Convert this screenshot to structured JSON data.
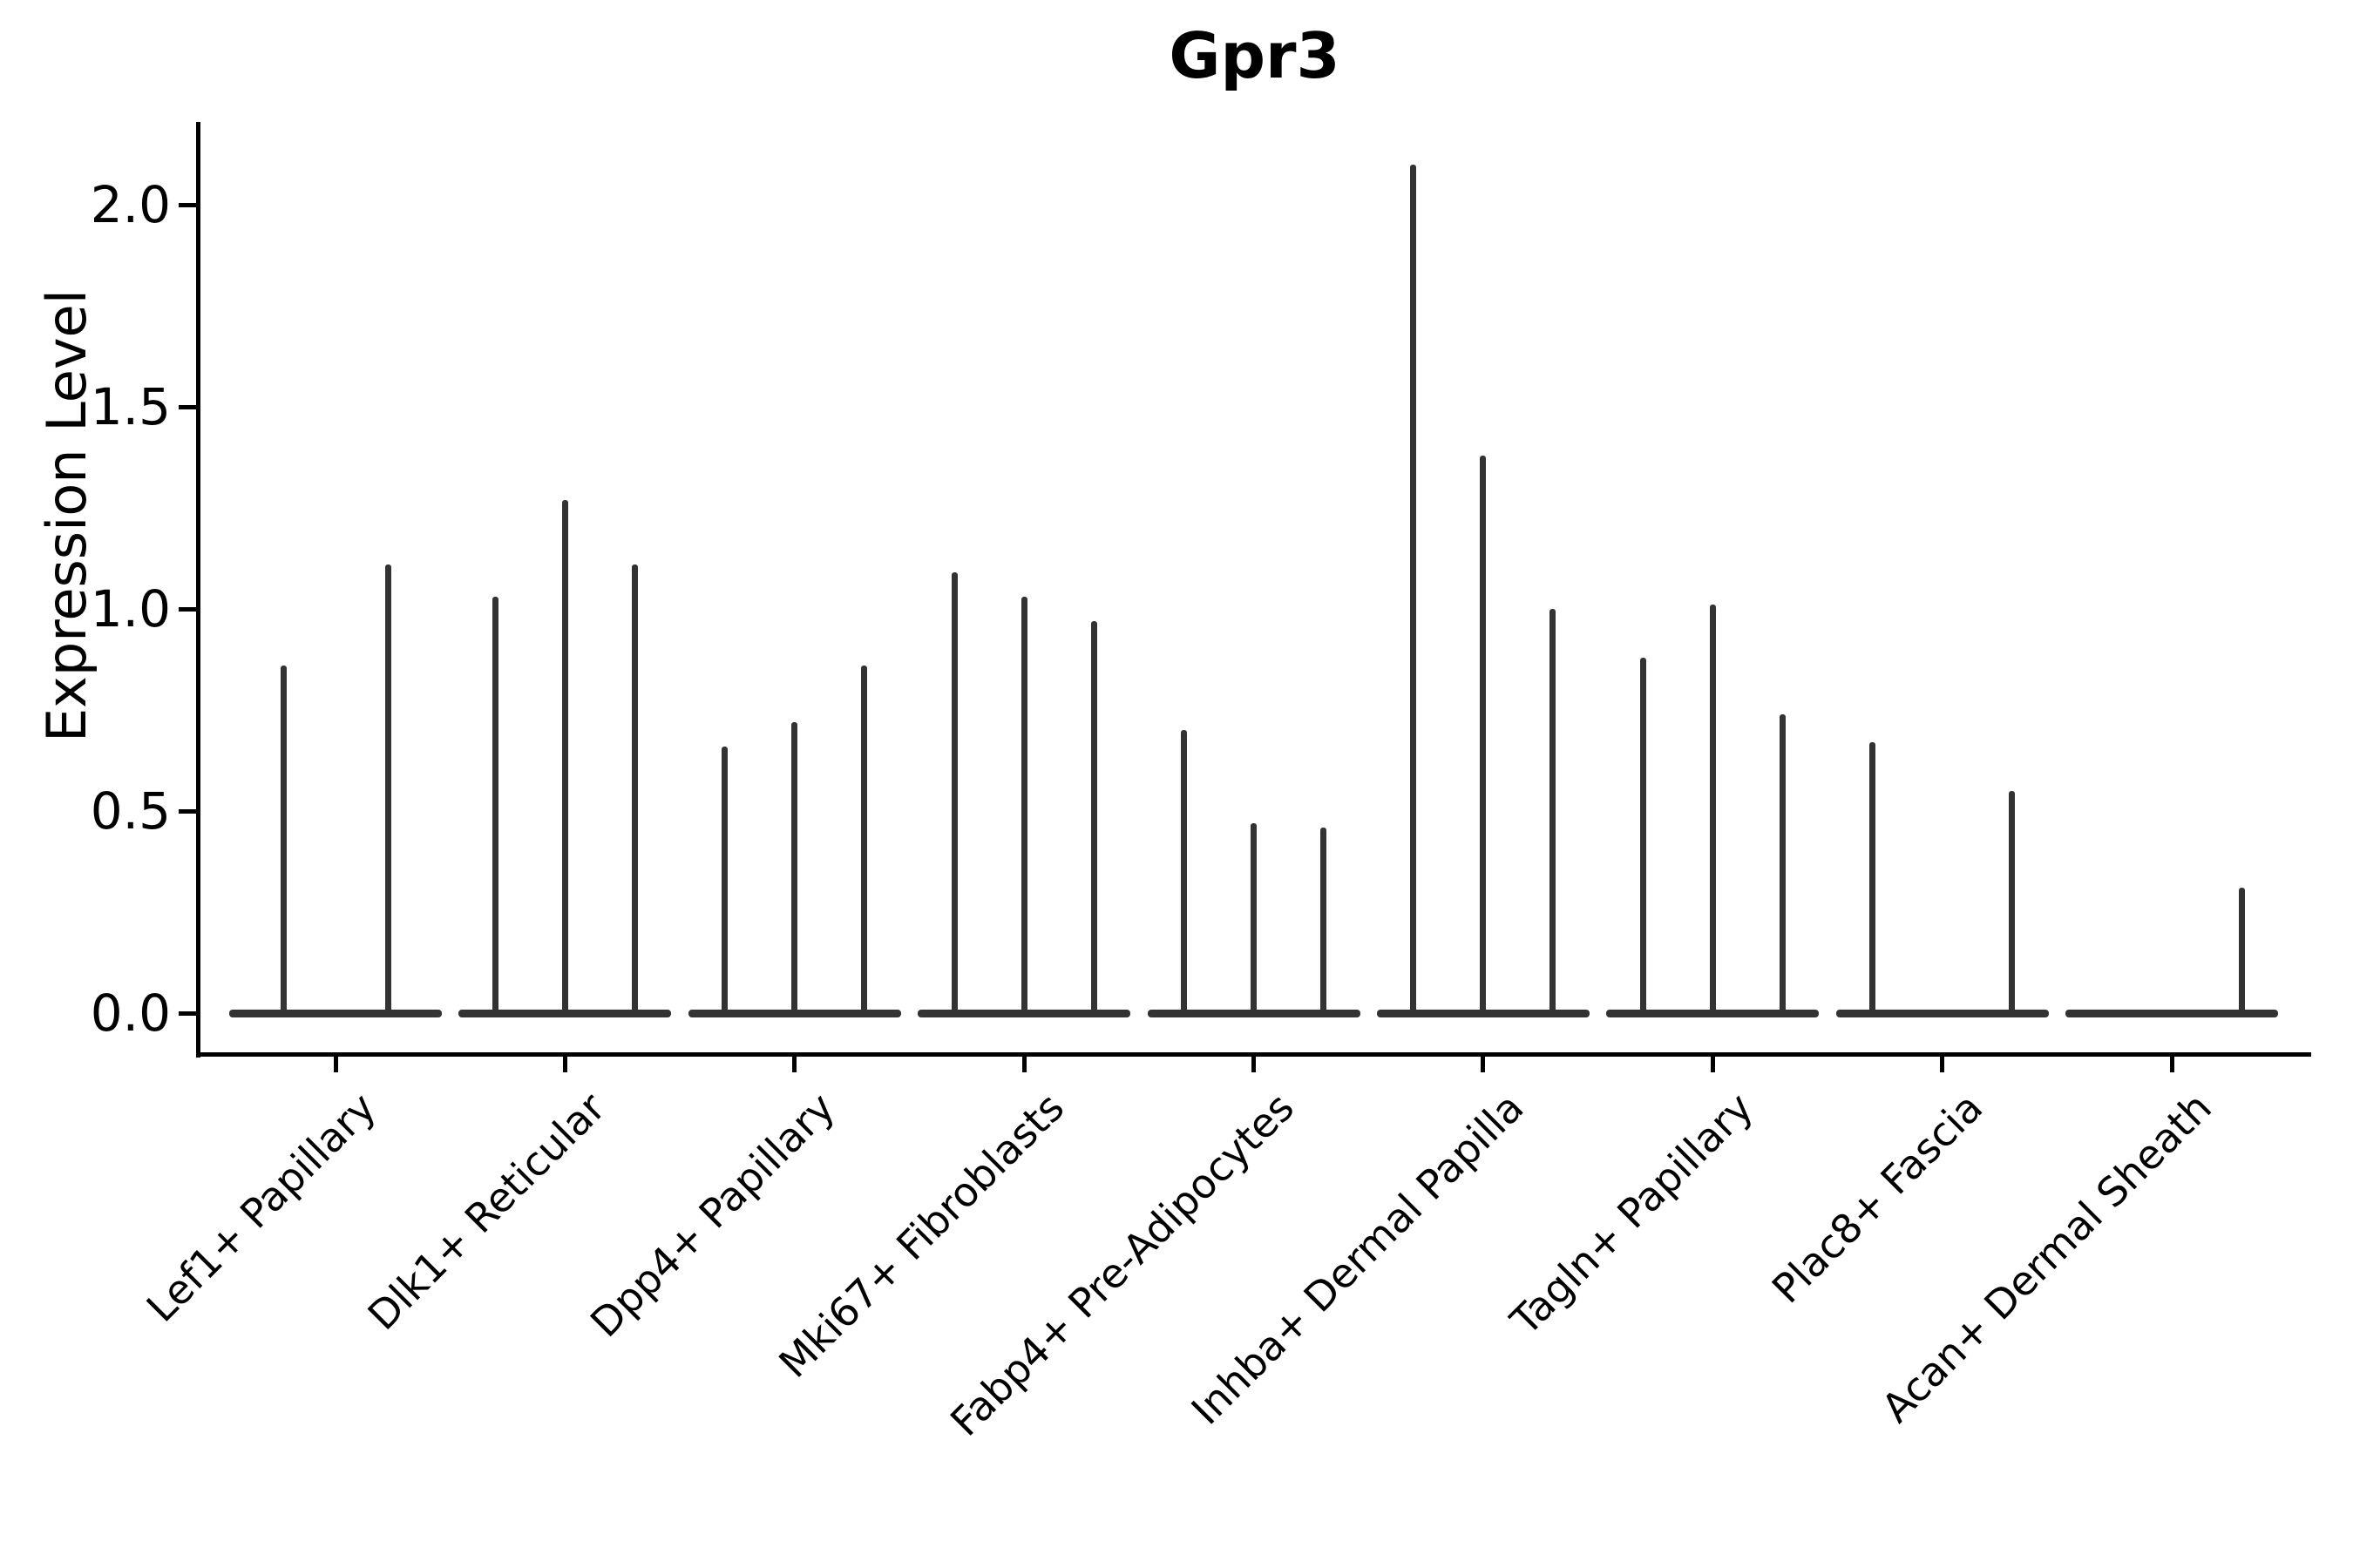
{
  "title": "Gpr3",
  "chart_data": {
    "type": "violin",
    "title": "Gpr3",
    "xlabel": "",
    "ylabel": "Expression Level",
    "ylim": [
      -0.1,
      2.2
    ],
    "yticks": [
      {
        "label": "0.0",
        "value": 0.0
      },
      {
        "label": "0.5",
        "value": 0.5
      },
      {
        "label": "1.0",
        "value": 1.0
      },
      {
        "label": "1.5",
        "value": 1.5
      },
      {
        "label": "2.0",
        "value": 2.0
      }
    ],
    "legend": "none",
    "grid": false,
    "line_color": "#333333",
    "axis_color": "#000000",
    "background_color": "#ffffff",
    "description": "Violin plot of Gpr3 expression; each category shows narrow spike-shaped violins (max expression peaks) rising from a flat baseline at 0.",
    "categories": [
      "Lef1+ Papillary",
      "Dlk1+ Reticular",
      "Dpp4+ Papillary",
      "Mki67+ Fibroblasts",
      "Fabp4+ Pre-Adipocytes",
      "Inhba+ Dermal Papilla",
      "Tagln+ Papillary",
      "Plac8+ Fascia",
      "Acan+ Dermal Sheath"
    ],
    "groups": [
      {
        "category": "Lef1+ Papillary",
        "n_slots": 2,
        "violins": [
          {
            "slot": 0,
            "peak": 0.86
          },
          {
            "slot": 1,
            "peak": 1.11
          }
        ]
      },
      {
        "category": "Dlk1+ Reticular",
        "n_slots": 3,
        "violins": [
          {
            "slot": 0,
            "peak": 1.03
          },
          {
            "slot": 1,
            "peak": 1.27
          },
          {
            "slot": 2,
            "peak": 1.11
          }
        ]
      },
      {
        "category": "Dpp4+ Papillary",
        "n_slots": 3,
        "violins": [
          {
            "slot": 0,
            "peak": 0.66
          },
          {
            "slot": 1,
            "peak": 0.72
          },
          {
            "slot": 2,
            "peak": 0.86
          }
        ]
      },
      {
        "category": "Mki67+ Fibroblasts",
        "n_slots": 3,
        "violins": [
          {
            "slot": 0,
            "peak": 1.09
          },
          {
            "slot": 1,
            "peak": 1.03
          },
          {
            "slot": 2,
            "peak": 0.97
          }
        ]
      },
      {
        "category": "Fabp4+ Pre-Adipocytes",
        "n_slots": 3,
        "violins": [
          {
            "slot": 0,
            "peak": 0.7
          },
          {
            "slot": 1,
            "peak": 0.47
          },
          {
            "slot": 2,
            "peak": 0.46
          }
        ]
      },
      {
        "category": "Inhba+ Dermal Papilla",
        "n_slots": 3,
        "violins": [
          {
            "slot": 0,
            "peak": 2.1
          },
          {
            "slot": 1,
            "peak": 1.38
          },
          {
            "slot": 2,
            "peak": 1.0
          }
        ]
      },
      {
        "category": "Tagln+ Papillary",
        "n_slots": 3,
        "violins": [
          {
            "slot": 0,
            "peak": 0.88
          },
          {
            "slot": 1,
            "peak": 1.01
          },
          {
            "slot": 2,
            "peak": 0.74
          }
        ]
      },
      {
        "category": "Plac8+ Fascia",
        "n_slots": 3,
        "violins": [
          {
            "slot": 0,
            "peak": 0.67
          },
          {
            "slot": 2,
            "peak": 0.55
          }
        ]
      },
      {
        "category": "Acan+ Dermal Sheath",
        "n_slots": 3,
        "violins": [
          {
            "slot": 2,
            "peak": 0.31
          }
        ]
      }
    ]
  }
}
